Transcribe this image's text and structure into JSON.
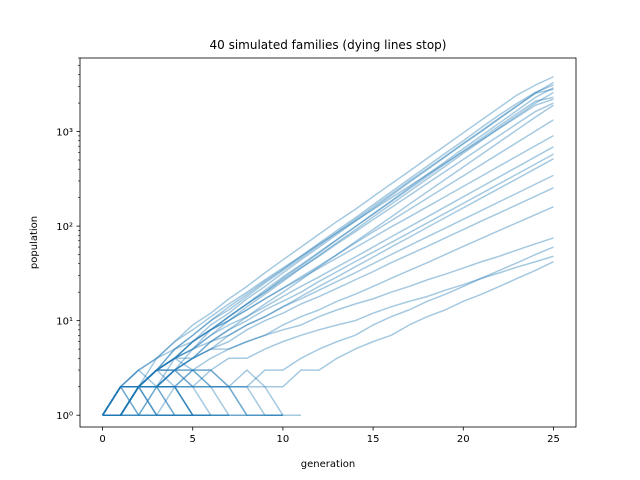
{
  "chart_data": {
    "type": "line",
    "title": "40 simulated families (dying lines stop)",
    "xlabel": "generation",
    "ylabel": "population",
    "xlim": [
      -1.25,
      26.25
    ],
    "ylim": [
      0.75,
      6000
    ],
    "yscale": "log",
    "x_ticks": [
      0,
      5,
      10,
      15,
      20,
      25
    ],
    "x_tick_labels": [
      "0",
      "5",
      "10",
      "15",
      "20",
      "25"
    ],
    "y_ticks": [
      1,
      10,
      100,
      1000
    ],
    "y_tick_labels": [
      "10⁰",
      "10¹",
      "10²",
      "10³"
    ],
    "grid": false,
    "legend": "none",
    "line_color": "#1f77b4",
    "line_alpha": 0.4,
    "series": [
      {
        "values": [
          1,
          1,
          2,
          2,
          4,
          6,
          8,
          11,
          15,
          20,
          28,
          38,
          52,
          72,
          98,
          135,
          185,
          255,
          350,
          480,
          660,
          900,
          1230,
          1680,
          2300,
          2900
        ]
      },
      {
        "values": [
          1,
          2,
          2,
          3,
          5,
          7,
          10,
          14,
          19,
          26,
          35,
          48,
          66,
          90,
          122,
          168,
          230,
          315,
          430,
          590,
          800,
          1100,
          1500,
          2000,
          2600,
          3100
        ]
      },
      {
        "values": [
          1,
          1,
          2,
          3,
          4,
          6,
          9,
          12,
          17,
          23,
          32,
          44,
          60,
          82,
          112,
          153,
          210,
          290,
          395,
          540,
          740,
          1000,
          1370,
          1870,
          2550,
          3300
        ]
      },
      {
        "values": [
          1,
          2,
          3,
          4,
          6,
          9,
          12,
          17,
          23,
          32,
          44,
          60,
          82,
          112,
          150,
          205,
          280,
          380,
          520,
          710,
          970,
          1320,
          1800,
          2450,
          3100,
          3800
        ]
      },
      {
        "values": [
          1,
          1,
          2,
          2,
          3,
          5,
          7,
          10,
          14,
          19,
          26,
          36,
          49,
          67,
          91,
          125,
          170,
          232,
          316,
          430,
          590,
          800,
          1090,
          1480,
          2000,
          2600
        ]
      },
      {
        "values": [
          1,
          2,
          2,
          4,
          5,
          7,
          10,
          13,
          18,
          25,
          34,
          46,
          63,
          86,
          117,
          160,
          218,
          298,
          405,
          550,
          750,
          1020,
          1390,
          1890,
          2550,
          2800
        ]
      },
      {
        "values": [
          1,
          1,
          2,
          3,
          4,
          5,
          8,
          11,
          15,
          21,
          29,
          39,
          53,
          72,
          98,
          133,
          181,
          247,
          336,
          457,
          622,
          846,
          1150,
          1560,
          2100,
          2300
        ]
      },
      {
        "values": [
          1,
          2,
          2,
          3,
          4,
          6,
          8,
          11,
          15,
          20,
          27,
          36,
          48,
          65,
          87,
          117,
          157,
          210,
          282,
          378,
          507,
          680,
          910,
          1220,
          1630,
          2000
        ]
      },
      {
        "values": [
          1,
          1,
          2,
          2,
          3,
          4,
          6,
          8,
          11,
          15,
          20,
          27,
          37,
          50,
          68,
          92,
          125,
          170,
          230,
          312,
          422,
          572,
          775,
          1050,
          1420,
          1900
        ]
      },
      {
        "values": [
          1,
          2,
          3,
          4,
          6,
          8,
          11,
          15,
          20,
          27,
          36,
          48,
          64,
          85,
          113,
          150,
          199,
          264,
          350,
          464,
          615,
          815,
          1080,
          1430,
          1900,
          2200
        ]
      },
      {
        "values": [
          1,
          1,
          2,
          3,
          4,
          6,
          8,
          10,
          13,
          17,
          22,
          29,
          38,
          50,
          66,
          87,
          114,
          150,
          197,
          259,
          340,
          447,
          587,
          771,
          1013,
          1330
        ]
      },
      {
        "values": [
          1,
          2,
          2,
          3,
          5,
          6,
          8,
          10,
          13,
          17,
          22,
          28,
          36,
          46,
          59,
          76,
          98,
          125,
          160,
          205,
          263,
          337,
          432,
          553,
          708,
          906
        ]
      },
      {
        "values": [
          1,
          1,
          2,
          3,
          4,
          5,
          7,
          9,
          11,
          14,
          18,
          23,
          29,
          37,
          47,
          60,
          77,
          98,
          125,
          160,
          204,
          260,
          332,
          424,
          541,
          690
        ]
      },
      {
        "values": [
          1,
          2,
          2,
          3,
          4,
          5,
          6,
          8,
          10,
          13,
          16,
          20,
          26,
          33,
          42,
          53,
          67,
          85,
          108,
          137,
          174,
          221,
          281,
          357,
          454,
          577
        ]
      },
      {
        "values": [
          1,
          1,
          2,
          2,
          3,
          4,
          5,
          7,
          9,
          11,
          14,
          18,
          23,
          29,
          37,
          47,
          60,
          76,
          97,
          123,
          156,
          198,
          251,
          319,
          405,
          515
        ]
      },
      {
        "values": [
          1,
          1,
          2,
          3,
          3,
          4,
          6,
          7,
          9,
          11,
          14,
          17,
          21,
          26,
          32,
          40,
          50,
          62,
          77,
          95,
          118,
          146,
          181,
          224,
          278,
          344
        ]
      },
      {
        "values": [
          1,
          2,
          2,
          3,
          4,
          4,
          5,
          6,
          8,
          10,
          12,
          15,
          18,
          22,
          27,
          33,
          41,
          50,
          61,
          75,
          92,
          113,
          138,
          169,
          207,
          254
        ]
      },
      {
        "values": [
          1,
          1,
          2,
          2,
          3,
          3,
          4,
          5,
          6,
          7,
          9,
          11,
          13,
          16,
          19,
          23,
          28,
          34,
          41,
          50,
          61,
          74,
          90,
          109,
          132,
          160
        ]
      },
      {
        "values": [
          1,
          1,
          2,
          3,
          3,
          4,
          5,
          5,
          6,
          7,
          8,
          9,
          11,
          13,
          15,
          17,
          20,
          23,
          27,
          31,
          36,
          42,
          48,
          56,
          65,
          75
        ]
      },
      {
        "values": [
          1,
          1,
          2,
          2,
          2,
          3,
          3,
          4,
          4,
          5,
          6,
          7,
          8,
          9,
          10,
          12,
          14,
          16,
          18,
          21,
          24,
          28,
          32,
          37,
          42,
          48
        ]
      },
      {
        "values": [
          1,
          1,
          2,
          2,
          3,
          2,
          3,
          2,
          2,
          3,
          3,
          4,
          5,
          6,
          7,
          9,
          11,
          13,
          16,
          19,
          23,
          28,
          34,
          41,
          50,
          60
        ]
      },
      {
        "values": [
          1,
          1,
          2,
          3,
          2,
          3,
          2,
          2,
          3,
          2,
          2,
          3,
          3,
          4,
          5,
          6,
          7,
          9,
          11,
          13,
          16,
          19,
          23,
          28,
          34,
          42
        ]
      },
      {
        "values": [
          1,
          2,
          2,
          2,
          3,
          3,
          2,
          2,
          2,
          1,
          1
        ]
      },
      {
        "values": [
          1,
          1,
          1,
          2,
          2,
          1,
          1,
          1,
          1
        ]
      },
      {
        "values": [
          1,
          2,
          1,
          1,
          1
        ]
      },
      {
        "values": [
          1,
          1,
          2,
          1,
          1,
          1,
          1
        ]
      },
      {
        "values": [
          1,
          2,
          2,
          1,
          1
        ]
      },
      {
        "values": [
          1,
          1,
          1,
          1,
          2,
          1
        ]
      },
      {
        "values": [
          1,
          2,
          2,
          2,
          1,
          1,
          1,
          1
        ]
      },
      {
        "values": [
          1,
          1,
          2,
          2,
          2,
          2,
          1,
          1
        ]
      },
      {
        "values": [
          1,
          2,
          3,
          2,
          2,
          1
        ]
      },
      {
        "values": [
          1,
          1,
          1,
          2,
          2,
          2,
          2,
          1,
          1,
          1,
          1
        ]
      },
      {
        "values": [
          1,
          2,
          2,
          3,
          3,
          2,
          2,
          2,
          1,
          1,
          1,
          1
        ]
      },
      {
        "values": [
          1,
          1,
          2,
          3,
          4,
          3,
          3,
          2,
          2,
          2,
          1
        ]
      },
      {
        "values": [
          1,
          2,
          2,
          2,
          2,
          2,
          2,
          2,
          1,
          1,
          1
        ]
      },
      {
        "values": [
          1,
          1,
          2,
          1,
          1,
          1,
          1,
          1
        ]
      },
      {
        "values": [
          1,
          2,
          1,
          1,
          1,
          1
        ]
      },
      {
        "values": [
          1,
          1,
          1,
          1,
          1,
          1,
          1
        ]
      },
      {
        "values": [
          1,
          2,
          2,
          2,
          2,
          1,
          1
        ]
      },
      {
        "values": [
          1,
          1,
          2,
          2,
          1,
          1
        ]
      }
    ]
  }
}
